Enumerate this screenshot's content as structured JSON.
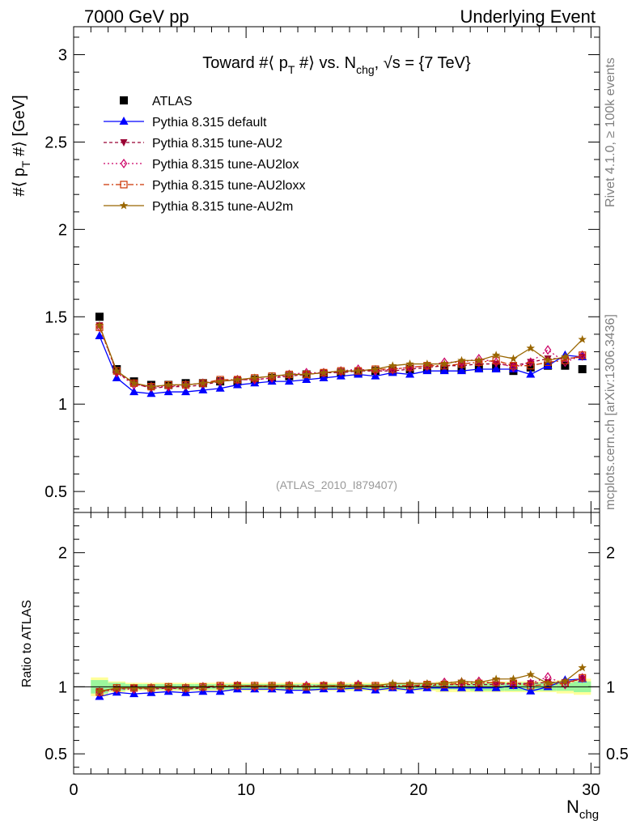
{
  "header": {
    "left": "7000 GeV pp",
    "right": "Underlying Event"
  },
  "side_labels": {
    "rivet": "Rivet 4.1.0, ≥ 100k events",
    "mcplots": "mcplots.cern.ch [arXiv:1306.3436]"
  },
  "chart_data": {
    "type": "line",
    "title": "Toward #⟨ p_T #⟩ vs. N_chg, √s = {7 TeV}",
    "title_parts": {
      "a": "Toward #⟨ p",
      "sub1": "T",
      "b": " #⟩ vs. N",
      "sub2": "chg",
      "c": ", √s = {7 TeV}"
    },
    "ylabel": "#⟨ p_T #⟩ [GeV]",
    "ylabel_parts": {
      "a": "#⟨ p",
      "sub": "T",
      "b": " #⟩ [GeV]"
    },
    "xlabel": "N_chg",
    "xlabel_parts": {
      "main": "N",
      "sub": "chg"
    },
    "ratio_ylabel": "Ratio to ATLAS",
    "watermark": "(ATLAS_2010_I879407)",
    "xlim": [
      0,
      30.5
    ],
    "ylim": [
      0.38,
      3.16
    ],
    "ratio_ylim": [
      0.35,
      2.3
    ],
    "x_ticks": [
      "0",
      "10",
      "20",
      "30"
    ],
    "y_ticks": [
      "0.5",
      "1",
      "1.5",
      "2",
      "2.5",
      "3"
    ],
    "ratio_ticks": [
      "0.5",
      "1",
      "2"
    ],
    "x": [
      1.5,
      2.5,
      3.5,
      4.5,
      5.5,
      6.5,
      7.5,
      8.5,
      9.5,
      10.5,
      11.5,
      12.5,
      13.5,
      14.5,
      15.5,
      16.5,
      17.5,
      18.5,
      19.5,
      20.5,
      21.5,
      22.5,
      23.5,
      24.5,
      25.5,
      26.5,
      27.5,
      28.5,
      29.5
    ],
    "series": [
      {
        "name": "ATLAS",
        "color": "#000000",
        "marker": "square",
        "dash": "none",
        "values": [
          1.5,
          1.2,
          1.13,
          1.11,
          1.11,
          1.12,
          1.12,
          1.13,
          1.13,
          1.14,
          1.15,
          1.16,
          1.17,
          1.17,
          1.18,
          1.18,
          1.19,
          1.19,
          1.2,
          1.2,
          1.2,
          1.2,
          1.21,
          1.21,
          1.19,
          1.21,
          1.22,
          1.22,
          1.2
        ]
      },
      {
        "name": "Pythia 8.315 default",
        "color": "#0000ff",
        "marker": "triangle-up",
        "dash": "none",
        "values": [
          1.39,
          1.15,
          1.07,
          1.06,
          1.07,
          1.07,
          1.08,
          1.09,
          1.11,
          1.12,
          1.13,
          1.13,
          1.14,
          1.15,
          1.16,
          1.17,
          1.16,
          1.18,
          1.17,
          1.19,
          1.19,
          1.19,
          1.2,
          1.2,
          1.2,
          1.17,
          1.22,
          1.28,
          1.27
        ]
      },
      {
        "name": "Pythia 8.315 tune-AU2",
        "color": "#990033",
        "marker": "triangle-down",
        "dash": "4,3",
        "values": [
          1.45,
          1.18,
          1.12,
          1.09,
          1.1,
          1.1,
          1.11,
          1.13,
          1.14,
          1.14,
          1.15,
          1.16,
          1.17,
          1.18,
          1.18,
          1.19,
          1.19,
          1.19,
          1.2,
          1.21,
          1.22,
          1.22,
          1.23,
          1.23,
          1.22,
          1.24,
          1.26,
          1.26,
          1.27
        ]
      },
      {
        "name": "Pythia 8.315 tune-AU2lox",
        "color": "#cc0066",
        "marker": "diamond",
        "dash": "2,3",
        "values": [
          1.44,
          1.18,
          1.11,
          1.1,
          1.1,
          1.11,
          1.12,
          1.13,
          1.14,
          1.14,
          1.15,
          1.17,
          1.18,
          1.18,
          1.19,
          1.2,
          1.19,
          1.2,
          1.21,
          1.22,
          1.24,
          1.24,
          1.26,
          1.24,
          1.21,
          1.24,
          1.31,
          1.24,
          1.28
        ]
      },
      {
        "name": "Pythia 8.315 tune-AU2loxx",
        "color": "#cc3300",
        "marker": "square-open",
        "dash": "7,3,2,3",
        "values": [
          1.44,
          1.19,
          1.12,
          1.1,
          1.11,
          1.11,
          1.12,
          1.14,
          1.14,
          1.15,
          1.16,
          1.17,
          1.17,
          1.18,
          1.19,
          1.19,
          1.2,
          1.2,
          1.21,
          1.22,
          1.22,
          1.23,
          1.24,
          1.25,
          1.22,
          1.22,
          1.24,
          1.25,
          1.28
        ]
      },
      {
        "name": "Pythia 8.315 tune-AU2m",
        "color": "#996600",
        "marker": "star",
        "dash": "none",
        "values": [
          1.45,
          1.19,
          1.12,
          1.1,
          1.11,
          1.11,
          1.12,
          1.13,
          1.14,
          1.15,
          1.16,
          1.17,
          1.17,
          1.18,
          1.19,
          1.19,
          1.2,
          1.22,
          1.23,
          1.23,
          1.23,
          1.25,
          1.25,
          1.28,
          1.26,
          1.32,
          1.25,
          1.27,
          1.37
        ]
      }
    ],
    "ratio_band": {
      "green": [
        0.05,
        0.03,
        0.02,
        0.02,
        0.02,
        0.02,
        0.02,
        0.02,
        0.02,
        0.02,
        0.02,
        0.02,
        0.02,
        0.02,
        0.02,
        0.02,
        0.02,
        0.02,
        0.02,
        0.02,
        0.02,
        0.02,
        0.03,
        0.03,
        0.03,
        0.03,
        0.03,
        0.03,
        0.04
      ],
      "yellow": [
        0.07,
        0.04,
        0.03,
        0.03,
        0.03,
        0.03,
        0.03,
        0.03,
        0.03,
        0.03,
        0.03,
        0.03,
        0.03,
        0.03,
        0.03,
        0.03,
        0.03,
        0.03,
        0.03,
        0.03,
        0.04,
        0.04,
        0.04,
        0.04,
        0.04,
        0.04,
        0.04,
        0.05,
        0.06
      ]
    },
    "legend": "top-left"
  }
}
